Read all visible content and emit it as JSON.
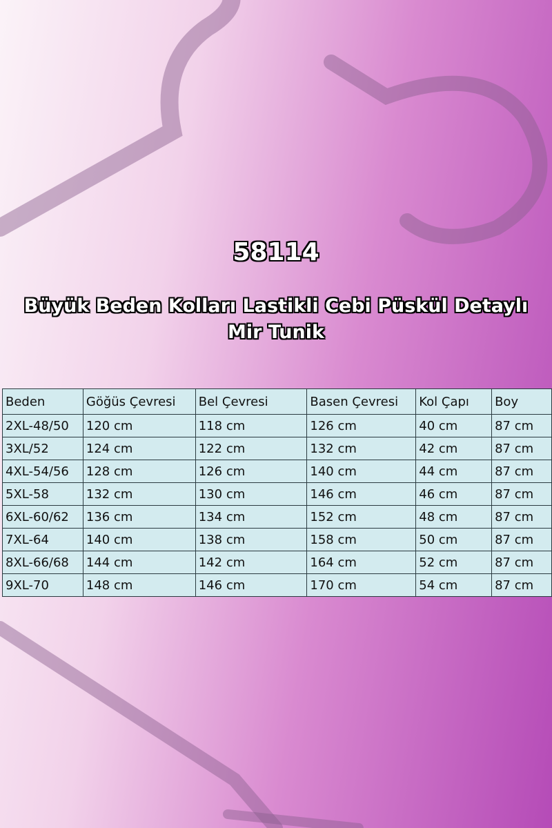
{
  "product_code": "58114",
  "title": "Büyük Beden Kolları Lastikli Cebi Püskül Detaylı Mir Tunik",
  "table": {
    "header": [
      "Beden",
      "Göğüs Çevresi",
      "Bel Çevresi",
      "Basen Çevresi",
      "Kol Çapı",
      "Boy"
    ],
    "rows": [
      [
        "2XL-48/50",
        "120 cm",
        "118 cm",
        "126 cm",
        "40 cm",
        "87 cm"
      ],
      [
        "3XL/52",
        "124 cm",
        "122 cm",
        "132 cm",
        "42 cm",
        "87 cm"
      ],
      [
        "4XL-54/56",
        "128 cm",
        "126 cm",
        "140 cm",
        "44 cm",
        "87 cm"
      ],
      [
        "5XL-58",
        "132 cm",
        "130 cm",
        "146 cm",
        "46 cm",
        "87 cm"
      ],
      [
        "6XL-60/62",
        "136 cm",
        "134 cm",
        "152 cm",
        "48 cm",
        "87 cm"
      ],
      [
        "7XL-64",
        "140 cm",
        "138 cm",
        "158 cm",
        "50 cm",
        "87 cm"
      ],
      [
        "8XL-66/68",
        "144 cm",
        "142 cm",
        "164 cm",
        "52 cm",
        "87 cm"
      ],
      [
        "9XL-70",
        "148 cm",
        "146 cm",
        "170 cm",
        "54 cm",
        "87 cm"
      ]
    ]
  }
}
